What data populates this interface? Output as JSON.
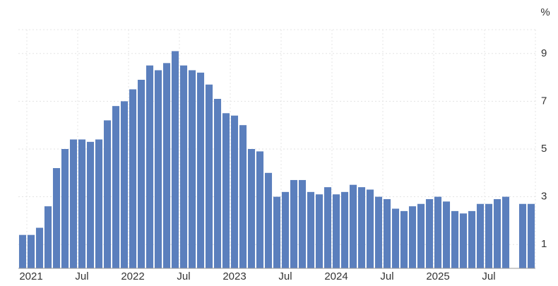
{
  "chart_data": {
    "type": "bar",
    "ylabel": "%",
    "color": "#5b7fbd",
    "categories": [
      null,
      "2021",
      null,
      null,
      null,
      null,
      null,
      "Jul",
      null,
      null,
      null,
      null,
      null,
      "2022",
      null,
      null,
      null,
      null,
      null,
      "Jul",
      null,
      null,
      null,
      null,
      null,
      "2023",
      null,
      null,
      null,
      null,
      null,
      "Jul",
      null,
      null,
      null,
      null,
      null,
      "2024",
      null,
      null,
      null,
      null,
      null,
      "Jul",
      null,
      null,
      null,
      null,
      null,
      "2025",
      null,
      null,
      null,
      null,
      null,
      "Jul",
      null,
      null,
      null,
      null,
      null
    ],
    "values": [
      1.4,
      1.4,
      1.7,
      2.6,
      4.2,
      5.0,
      5.4,
      5.4,
      5.3,
      5.4,
      6.2,
      6.8,
      7.0,
      7.5,
      7.9,
      8.5,
      8.3,
      8.6,
      9.1,
      8.5,
      8.3,
      8.2,
      7.7,
      7.1,
      6.5,
      6.4,
      6.0,
      5.0,
      4.9,
      4.0,
      3.0,
      3.2,
      3.7,
      3.7,
      3.2,
      3.1,
      3.4,
      3.1,
      3.2,
      3.5,
      3.4,
      3.3,
      3.0,
      2.9,
      2.5,
      2.4,
      2.6,
      2.7,
      2.9,
      3.0,
      2.8,
      2.4,
      2.3,
      2.4,
      2.7,
      2.7,
      2.9,
      3.0,
      null,
      2.7,
      2.7
    ],
    "ylim": [
      0,
      10
    ],
    "yticks": [
      1,
      3,
      5,
      7,
      9
    ],
    "grid": true
  }
}
